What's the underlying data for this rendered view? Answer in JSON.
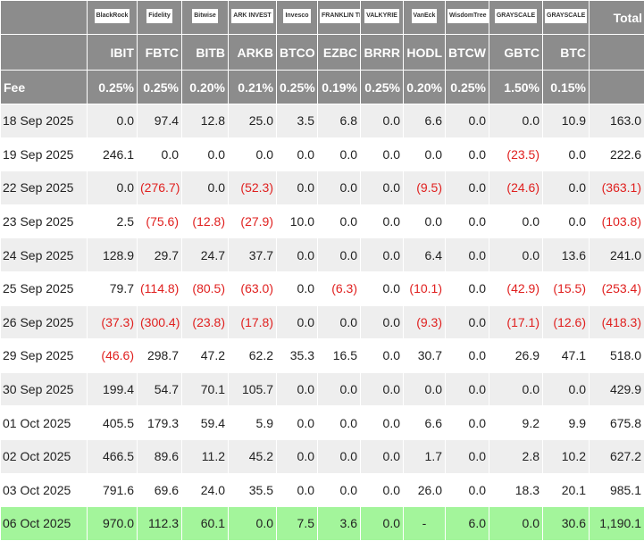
{
  "header": {
    "logos": [
      "BlackRock",
      "Fidelity",
      "Bitwise",
      "ARK INVEST",
      "Invesco",
      "FRANKLIN TEMPLETON",
      "VALKYRIE",
      "VanEck",
      "WisdomTree",
      "GRAYSCALE",
      "GRAYSCALE"
    ],
    "total": "Total",
    "tickers": [
      "IBIT",
      "FBTC",
      "BITB",
      "ARKB",
      "BTCO",
      "EZBC",
      "BRRR",
      "HODL",
      "BTCW",
      "GBTC",
      "BTC"
    ]
  },
  "fee": {
    "label": "Fee",
    "values": [
      "0.25%",
      "0.25%",
      "0.20%",
      "0.21%",
      "0.25%",
      "0.19%",
      "0.25%",
      "0.20%",
      "0.25%",
      "1.50%",
      "0.15%"
    ]
  },
  "rows": [
    {
      "date": "18 Sep 2025",
      "values": [
        "0.0",
        "97.4",
        "12.8",
        "25.0",
        "3.5",
        "6.8",
        "0.0",
        "6.6",
        "0.0",
        "0.0",
        "10.9",
        "163.0"
      ]
    },
    {
      "date": "19 Sep 2025",
      "values": [
        "246.1",
        "0.0",
        "0.0",
        "0.0",
        "0.0",
        "0.0",
        "0.0",
        "0.0",
        "0.0",
        "(23.5)",
        "0.0",
        "222.6"
      ]
    },
    {
      "date": "22 Sep 2025",
      "values": [
        "0.0",
        "(276.7)",
        "0.0",
        "(52.3)",
        "0.0",
        "0.0",
        "0.0",
        "(9.5)",
        "0.0",
        "(24.6)",
        "0.0",
        "(363.1)"
      ]
    },
    {
      "date": "23 Sep 2025",
      "values": [
        "2.5",
        "(75.6)",
        "(12.8)",
        "(27.9)",
        "10.0",
        "0.0",
        "0.0",
        "0.0",
        "0.0",
        "0.0",
        "0.0",
        "(103.8)"
      ]
    },
    {
      "date": "24 Sep 2025",
      "values": [
        "128.9",
        "29.7",
        "24.7",
        "37.7",
        "0.0",
        "0.0",
        "0.0",
        "6.4",
        "0.0",
        "0.0",
        "13.6",
        "241.0"
      ]
    },
    {
      "date": "25 Sep 2025",
      "values": [
        "79.7",
        "(114.8)",
        "(80.5)",
        "(63.0)",
        "0.0",
        "(6.3)",
        "0.0",
        "(10.1)",
        "0.0",
        "(42.9)",
        "(15.5)",
        "(253.4)"
      ]
    },
    {
      "date": "26 Sep 2025",
      "values": [
        "(37.3)",
        "(300.4)",
        "(23.8)",
        "(17.8)",
        "0.0",
        "0.0",
        "0.0",
        "(9.3)",
        "0.0",
        "(17.1)",
        "(12.6)",
        "(418.3)"
      ]
    },
    {
      "date": "29 Sep 2025",
      "values": [
        "(46.6)",
        "298.7",
        "47.2",
        "62.2",
        "35.3",
        "16.5",
        "0.0",
        "30.7",
        "0.0",
        "26.9",
        "47.1",
        "518.0"
      ]
    },
    {
      "date": "30 Sep 2025",
      "values": [
        "199.4",
        "54.7",
        "70.1",
        "105.7",
        "0.0",
        "0.0",
        "0.0",
        "0.0",
        "0.0",
        "0.0",
        "0.0",
        "429.9"
      ]
    },
    {
      "date": "01 Oct 2025",
      "values": [
        "405.5",
        "179.3",
        "59.4",
        "5.9",
        "0.0",
        "0.0",
        "0.0",
        "6.6",
        "0.0",
        "9.2",
        "9.9",
        "675.8"
      ]
    },
    {
      "date": "02 Oct 2025",
      "values": [
        "466.5",
        "89.6",
        "11.2",
        "45.2",
        "0.0",
        "0.0",
        "0.0",
        "1.7",
        "0.0",
        "2.8",
        "10.2",
        "627.2"
      ]
    },
    {
      "date": "03 Oct 2025",
      "values": [
        "791.6",
        "69.6",
        "24.0",
        "35.5",
        "0.0",
        "0.0",
        "0.0",
        "26.0",
        "0.0",
        "18.3",
        "20.1",
        "985.1"
      ]
    },
    {
      "date": "06 Oct 2025",
      "values": [
        "970.0",
        "112.3",
        "60.1",
        "0.0",
        "7.5",
        "3.6",
        "0.0",
        "-",
        "6.0",
        "0.0",
        "30.6",
        "1,190.1"
      ]
    }
  ]
}
